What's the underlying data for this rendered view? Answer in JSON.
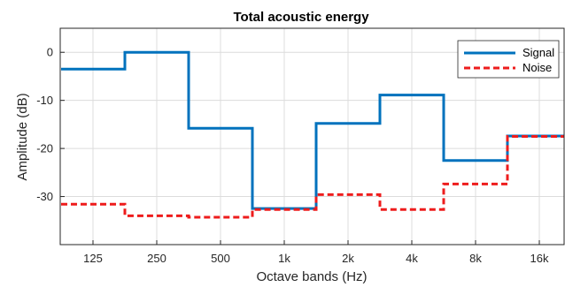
{
  "chart_data": {
    "type": "line",
    "step": true,
    "title": "Total acoustic energy",
    "xlabel": "Octave bands (Hz)",
    "ylabel": "Amplitude (dB)",
    "x_ticks": [
      "125",
      "250",
      "500",
      "1k",
      "2k",
      "4k",
      "8k",
      "16k"
    ],
    "ylim": [
      -40,
      5
    ],
    "y_ticks": [
      0,
      -10,
      -20,
      -30
    ],
    "grid": true,
    "legend_position": "top-right",
    "series": [
      {
        "name": "Signal",
        "color": "#0072BD",
        "style": "solid",
        "values": [
          -3.5,
          0,
          -15.8,
          -32.5,
          -14.8,
          -8.9,
          -22.5,
          -17.4
        ]
      },
      {
        "name": "Noise",
        "color": "#EE1C1C",
        "style": "dashed",
        "values": [
          -31.6,
          -34.0,
          -34.3,
          -32.7,
          -29.6,
          -32.7,
          -27.4,
          -17.5
        ]
      }
    ]
  }
}
